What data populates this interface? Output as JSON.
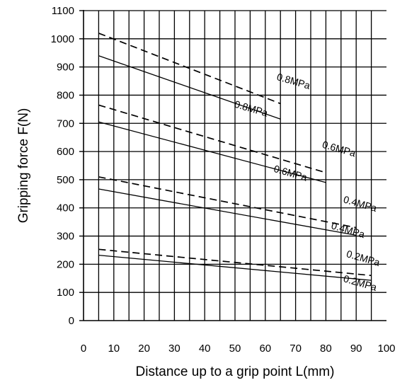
{
  "chart_data": {
    "type": "line",
    "title": "",
    "xlabel": "Distance up to a grip point L(mm)",
    "ylabel": "Gripping force F(N)",
    "xlim": [
      0,
      100
    ],
    "ylim": [
      0,
      1100
    ],
    "x_ticks": [
      "0",
      "10",
      "20",
      "30",
      "40",
      "50",
      "60",
      "70",
      "80",
      "90",
      "100"
    ],
    "y_ticks": [
      "0",
      "100",
      "200",
      "300",
      "400",
      "500",
      "600",
      "700",
      "800",
      "900",
      "1000",
      "1100"
    ],
    "grid": true,
    "minor_x_grid_step": 5,
    "series": [
      {
        "name": "0.8MPa",
        "style": "dashed",
        "x": [
          5,
          65
        ],
        "y": [
          1020,
          770
        ]
      },
      {
        "name": "0.8MPa",
        "style": "solid",
        "x": [
          5,
          65
        ],
        "y": [
          940,
          715
        ]
      },
      {
        "name": "0.6MPa",
        "style": "dashed",
        "x": [
          5,
          80
        ],
        "y": [
          765,
          525
        ]
      },
      {
        "name": "0.6MPa",
        "style": "solid",
        "x": [
          5,
          80
        ],
        "y": [
          705,
          490
        ]
      },
      {
        "name": "0.4MPa",
        "style": "dashed",
        "x": [
          5,
          90
        ],
        "y": [
          510,
          330
        ]
      },
      {
        "name": "0.4MPa",
        "style": "solid",
        "x": [
          5,
          90
        ],
        "y": [
          467,
          303
        ]
      },
      {
        "name": "0.2MPa",
        "style": "dashed",
        "x": [
          5,
          95
        ],
        "y": [
          253,
          160
        ]
      },
      {
        "name": "0.2MPa",
        "style": "solid",
        "x": [
          5,
          95
        ],
        "y": [
          232,
          143
        ]
      }
    ],
    "annotations": [
      {
        "text": "0.8MPa",
        "x": 69,
        "y": 838
      },
      {
        "text": "0.8MPa",
        "x": 55,
        "y": 741
      },
      {
        "text": "0.6MPa",
        "x": 84,
        "y": 598
      },
      {
        "text": "0.6MPa",
        "x": 68,
        "y": 512
      },
      {
        "text": "0.4MPa",
        "x": 91,
        "y": 403
      },
      {
        "text": "0.4MPa",
        "x": 87,
        "y": 310
      },
      {
        "text": "0.2MPa",
        "x": 92,
        "y": 210
      },
      {
        "text": "0.2MPa",
        "x": 91,
        "y": 122
      }
    ]
  }
}
